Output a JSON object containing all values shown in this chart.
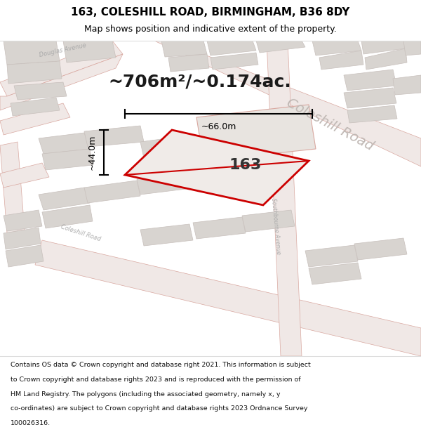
{
  "title": "163, COLESHILL ROAD, BIRMINGHAM, B36 8DY",
  "subtitle": "Map shows position and indicative extent of the property.",
  "area_text": "~706m²/~0.174ac.",
  "property_number": "163",
  "dim_width": "~66.0m",
  "dim_height": "~44.0m",
  "footer_lines": [
    "Contains OS data © Crown copyright and database right 2021. This information is subject",
    "to Crown copyright and database rights 2023 and is reproduced with the permission of",
    "HM Land Registry. The polygons (including the associated geometry, namely x, y",
    "co-ordinates) are subject to Crown copyright and database rights 2023 Ordnance Survey",
    "100026316."
  ],
  "map_bg": "#f7f4f1",
  "road_fill": "#f0e8e6",
  "road_edge": "#d9a8a0",
  "block_color": "#d8d4d0",
  "block_edge": "#c8c0bc",
  "property_fill": "#f0ebe8",
  "property_edge": "#cc0000",
  "dim_color": "#000000",
  "label_color": "#aaaaaa",
  "big_label_color": "#c0b8b4",
  "title_color": "#000000",
  "title_fontsize": 11,
  "subtitle_fontsize": 9,
  "area_fontsize": 18,
  "num_fontsize": 16,
  "footer_fontsize": 6.8
}
